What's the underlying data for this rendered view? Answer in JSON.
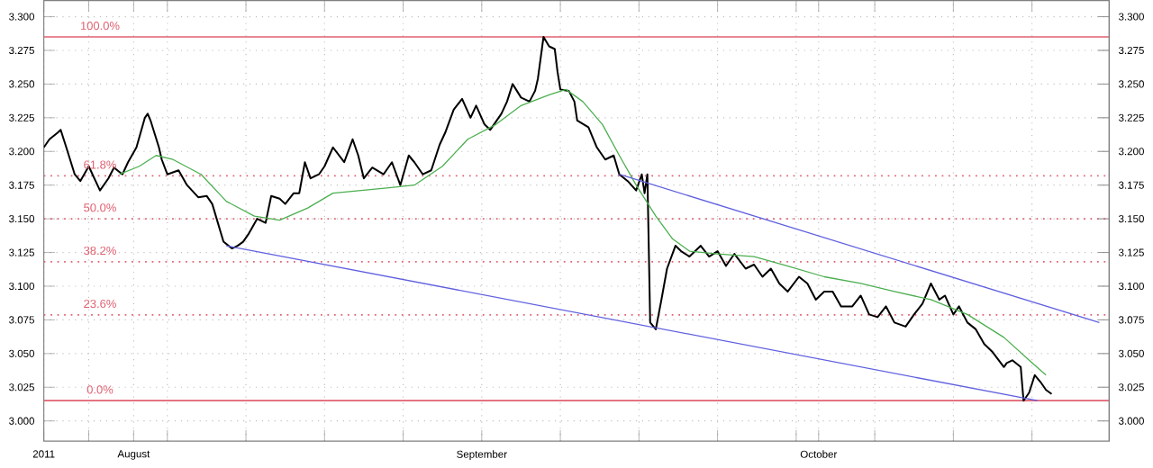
{
  "chart_data": {
    "type": "line",
    "xlim": [
      "2011-07-24",
      "2011-10-26T21:00"
    ],
    "ylim": [
      2.985,
      3.312
    ],
    "y2lim": [
      2.985,
      3.312
    ],
    "grid": true,
    "marker": "none",
    "xticks": [
      {
        "value": "2011-07-24",
        "label": "2011"
      },
      {
        "value": "2011-07-28",
        "label": null
      },
      {
        "value": "2011-08-01",
        "label": "August"
      },
      {
        "value": "2011-08-04",
        "label": null
      },
      {
        "value": "2011-08-11",
        "label": null
      },
      {
        "value": "2011-08-18",
        "label": null
      },
      {
        "value": "2011-08-25",
        "label": null
      },
      {
        "value": "2011-09-01",
        "label": "September"
      },
      {
        "value": "2011-09-08",
        "label": null
      },
      {
        "value": "2011-09-15",
        "label": null
      },
      {
        "value": "2011-09-22",
        "label": null
      },
      {
        "value": "2011-09-29",
        "label": null
      },
      {
        "value": "2011-10-01",
        "label": "October"
      },
      {
        "value": "2011-10-06",
        "label": null
      },
      {
        "value": "2011-10-13",
        "label": null
      },
      {
        "value": "2011-10-20",
        "label": null
      }
    ],
    "yticks": [
      {
        "value": 3.0,
        "label": "3.000"
      },
      {
        "value": 3.025,
        "label": "3.025"
      },
      {
        "value": 3.05,
        "label": "3.050"
      },
      {
        "value": 3.075,
        "label": "3.075"
      },
      {
        "value": 3.1,
        "label": "3.100"
      },
      {
        "value": 3.125,
        "label": "3.125"
      },
      {
        "value": 3.15,
        "label": "3.150"
      },
      {
        "value": 3.175,
        "label": "3.175"
      },
      {
        "value": 3.2,
        "label": "3.200"
      },
      {
        "value": 3.225,
        "label": "3.225"
      },
      {
        "value": 3.25,
        "label": "3.250"
      },
      {
        "value": 3.275,
        "label": "3.275"
      },
      {
        "value": 3.3,
        "label": "3.300"
      }
    ],
    "y2ticks": [
      {
        "value": 3.0,
        "label": "3.000"
      },
      {
        "value": 3.025,
        "label": "3.025"
      },
      {
        "value": 3.05,
        "label": "3.050"
      },
      {
        "value": 3.075,
        "label": "3.075"
      },
      {
        "value": 3.1,
        "label": "3.100"
      },
      {
        "value": 3.125,
        "label": "3.125"
      },
      {
        "value": 3.15,
        "label": "3.150"
      },
      {
        "value": 3.175,
        "label": "3.175"
      },
      {
        "value": 3.2,
        "label": "3.200"
      },
      {
        "value": 3.225,
        "label": "3.225"
      },
      {
        "value": 3.25,
        "label": "3.250"
      },
      {
        "value": 3.275,
        "label": "3.275"
      },
      {
        "value": 3.3,
        "label": "3.300"
      }
    ],
    "series": [
      {
        "color": "#000000",
        "x": [
          "2011-07-24T00:00",
          "2011-07-24T12:00",
          "2011-07-25T06:00",
          "2011-07-25T12:00",
          "2011-07-26T00:00",
          "2011-07-26T18:00",
          "2011-07-27T06:00",
          "2011-07-28T00:00",
          "2011-07-29T00:00",
          "2011-07-29T18:00",
          "2011-07-30T06:00",
          "2011-07-31T00:00",
          "2011-07-31T12:00",
          "2011-08-01T06:00",
          "2011-08-02T00:00",
          "2011-08-02T06:00",
          "2011-08-02T12:00",
          "2011-08-03T06:00",
          "2011-08-03T12:00",
          "2011-08-04T00:00",
          "2011-08-05T00:00",
          "2011-08-05T18:00",
          "2011-08-06T18:00",
          "2011-08-07T12:00",
          "2011-08-08T00:00",
          "2011-08-08T12:00",
          "2011-08-09T00:00",
          "2011-08-09T18:00",
          "2011-08-10T06:00",
          "2011-08-10T18:00",
          "2011-08-11T06:00",
          "2011-08-12T00:00",
          "2011-08-12T18:00",
          "2011-08-13T06:00",
          "2011-08-14T00:00",
          "2011-08-14T12:00",
          "2011-08-15T06:00",
          "2011-08-15T18:00",
          "2011-08-16T06:00",
          "2011-08-16T18:00",
          "2011-08-17T12:00",
          "2011-08-18T00:00",
          "2011-08-18T18:00",
          "2011-08-19T18:00",
          "2011-08-20T12:00",
          "2011-08-21T00:00",
          "2011-08-21T12:00",
          "2011-08-22T06:00",
          "2011-08-23T06:00",
          "2011-08-24T00:00",
          "2011-08-24T18:00",
          "2011-08-25T12:00",
          "2011-08-26T00:00",
          "2011-08-26T18:00",
          "2011-08-27T12:00",
          "2011-08-28T06:00",
          "2011-08-28T18:00",
          "2011-08-29T12:00",
          "2011-08-30T06:00",
          "2011-08-31T00:00",
          "2011-08-31T12:00",
          "2011-09-01T06:00",
          "2011-09-01T18:00",
          "2011-09-02T18:00",
          "2011-09-03T06:00",
          "2011-09-03T18:00",
          "2011-09-04T12:00",
          "2011-09-05T06:00",
          "2011-09-05T18:00",
          "2011-09-06T00:00",
          "2011-09-06T12:00",
          "2011-09-07T00:00",
          "2011-09-07T12:00",
          "2011-09-07T18:00",
          "2011-09-08T00:00",
          "2011-09-08T18:00",
          "2011-09-09T06:00",
          "2011-09-09T12:00",
          "2011-09-10T12:00",
          "2011-09-11T06:00",
          "2011-09-12T00:00",
          "2011-09-12T18:00",
          "2011-09-13T06:00",
          "2011-09-14T00:00",
          "2011-09-14T18:00",
          "2011-09-15T06:00",
          "2011-09-15T12:00",
          "2011-09-15T18:00",
          "2011-09-16T00:00",
          "2011-09-16T12:00",
          "2011-09-17T00:00",
          "2011-09-17T12:00",
          "2011-09-18T06:00",
          "2011-09-18T18:00",
          "2011-09-19T12:00",
          "2011-09-20T12:00",
          "2011-09-21T06:00",
          "2011-09-22T00:00",
          "2011-09-22T18:00",
          "2011-09-23T12:00",
          "2011-09-24T12:00",
          "2011-09-25T06:00",
          "2011-09-26T00:00",
          "2011-09-26T18:00",
          "2011-09-27T12:00",
          "2011-09-28T06:00",
          "2011-09-29T06:00",
          "2011-09-30T00:00",
          "2011-09-30T18:00",
          "2011-10-01T12:00",
          "2011-10-02T06:00",
          "2011-10-03T00:00",
          "2011-10-04T00:00",
          "2011-10-04T18:00",
          "2011-10-05T12:00",
          "2011-10-06T06:00",
          "2011-10-07T00:00",
          "2011-10-07T18:00",
          "2011-10-08T18:00",
          "2011-10-09T12:00",
          "2011-10-10T06:00",
          "2011-10-11T00:00",
          "2011-10-11T18:00",
          "2011-10-12T06:00",
          "2011-10-13T00:00",
          "2011-10-13T12:00",
          "2011-10-14T06:00",
          "2011-10-15T00:00",
          "2011-10-15T18:00",
          "2011-10-16T12:00",
          "2011-10-17T12:00",
          "2011-10-17T18:00",
          "2011-10-18T06:00",
          "2011-10-19T00:00",
          "2011-10-19T06:00",
          "2011-10-19T18:00",
          "2011-10-20T06:00",
          "2011-10-20T18:00",
          "2011-10-21T06:00",
          "2011-10-21T18:00"
        ],
        "values": [
          3.203,
          3.209,
          3.214,
          3.216,
          3.203,
          3.183,
          3.178,
          3.189,
          3.171,
          3.18,
          3.188,
          3.183,
          3.192,
          3.203,
          3.225,
          3.228,
          3.223,
          3.203,
          3.194,
          3.183,
          3.186,
          3.175,
          3.166,
          3.167,
          3.161,
          3.147,
          3.133,
          3.128,
          3.13,
          3.133,
          3.139,
          3.15,
          3.147,
          3.167,
          3.165,
          3.161,
          3.169,
          3.169,
          3.192,
          3.18,
          3.183,
          3.189,
          3.203,
          3.192,
          3.209,
          3.197,
          3.18,
          3.188,
          3.183,
          3.192,
          3.175,
          3.197,
          3.192,
          3.183,
          3.186,
          3.205,
          3.214,
          3.231,
          3.239,
          3.225,
          3.234,
          3.22,
          3.216,
          3.228,
          3.237,
          3.25,
          3.24,
          3.237,
          3.245,
          3.254,
          3.285,
          3.278,
          3.276,
          3.259,
          3.246,
          3.245,
          3.237,
          3.223,
          3.218,
          3.203,
          3.194,
          3.197,
          3.183,
          3.178,
          3.171,
          3.183,
          3.169,
          3.183,
          3.073,
          3.068,
          3.09,
          3.113,
          3.13,
          3.126,
          3.122,
          3.13,
          3.122,
          3.126,
          3.115,
          3.124,
          3.113,
          3.116,
          3.107,
          3.113,
          3.102,
          3.096,
          3.107,
          3.102,
          3.09,
          3.096,
          3.096,
          3.085,
          3.085,
          3.093,
          3.079,
          3.077,
          3.085,
          3.073,
          3.07,
          3.079,
          3.087,
          3.102,
          3.09,
          3.093,
          3.079,
          3.085,
          3.073,
          3.068,
          3.057,
          3.051,
          3.04,
          3.043,
          3.045,
          3.04,
          3.015,
          3.021,
          3.034,
          3.029,
          3.023,
          3.02
        ]
      },
      {
        "color": "#4caf50",
        "x": [
          "2011-07-30T18:00",
          "2011-08-01T12:00",
          "2011-08-03T00:00",
          "2011-08-04T12:00",
          "2011-08-07T00:00",
          "2011-08-09T06:00",
          "2011-08-11T18:00",
          "2011-08-14T00:00",
          "2011-08-16T12:00",
          "2011-08-18T18:00",
          "2011-08-21T06:00",
          "2011-08-23T18:00",
          "2011-08-26T00:00",
          "2011-08-28T12:00",
          "2011-08-30T18:00",
          "2011-09-02T06:00",
          "2011-09-04T12:00",
          "2011-09-07T00:00",
          "2011-09-08T12:00",
          "2011-09-10T00:00",
          "2011-09-11T18:00",
          "2011-09-13T06:00",
          "2011-09-14T18:00",
          "2011-09-16T12:00",
          "2011-09-18T00:00",
          "2011-09-19T12:00",
          "2011-09-22T00:00",
          "2011-09-25T06:00",
          "2011-09-28T06:00",
          "2011-10-01T12:00",
          "2011-10-04T18:00",
          "2011-10-07T18:00",
          "2011-10-11T00:00",
          "2011-10-14T06:00",
          "2011-10-17T12:00",
          "2011-10-19T18:00",
          "2011-10-21T06:00"
        ],
        "values": [
          3.183,
          3.189,
          3.197,
          3.194,
          3.183,
          3.163,
          3.152,
          3.149,
          3.158,
          3.169,
          3.171,
          3.173,
          3.175,
          3.189,
          3.209,
          3.22,
          3.234,
          3.242,
          3.246,
          3.237,
          3.22,
          3.197,
          3.175,
          3.152,
          3.135,
          3.126,
          3.124,
          3.122,
          3.115,
          3.107,
          3.102,
          3.096,
          3.09,
          3.079,
          3.062,
          3.045,
          3.034
        ]
      },
      {
        "color": "#6060e0",
        "x": [
          "2011-08-09T06:00",
          "2011-10-20T12:00"
        ],
        "values": [
          3.13,
          3.015
        ]
      },
      {
        "color": "#6060e0",
        "x": [
          "2011-09-13T06:00",
          "2011-10-26T00:00"
        ],
        "values": [
          3.183,
          3.073
        ]
      }
    ],
    "ref_lines": [
      {
        "axis": "y",
        "value": 3.285,
        "color": "#e06070",
        "line_style": "solid"
      },
      {
        "axis": "y",
        "value": 3.1819,
        "color": "#e06070",
        "line_style": "dotted"
      },
      {
        "axis": "y",
        "value": 3.15,
        "color": "#e06070",
        "line_style": "dotted"
      },
      {
        "axis": "y",
        "value": 3.1181,
        "color": "#e06070",
        "line_style": "dotted"
      },
      {
        "axis": "y",
        "value": 3.0787,
        "color": "#e06070",
        "line_style": "dotted"
      },
      {
        "axis": "y",
        "value": 3.015,
        "color": "#e06070",
        "line_style": "solid"
      }
    ],
    "annotations": [
      {
        "text": "100.0%",
        "x": "2011-07-29",
        "y": 3.285
      },
      {
        "text": "61.8%",
        "x": "2011-07-29",
        "y": 3.1819
      },
      {
        "text": "50.0%",
        "x": "2011-07-29",
        "y": 3.15
      },
      {
        "text": "38.2%",
        "x": "2011-07-29",
        "y": 3.1181
      },
      {
        "text": "23.6%",
        "x": "2011-07-29",
        "y": 3.0787
      },
      {
        "text": "0.0%",
        "x": "2011-07-29",
        "y": 3.015
      }
    ]
  }
}
